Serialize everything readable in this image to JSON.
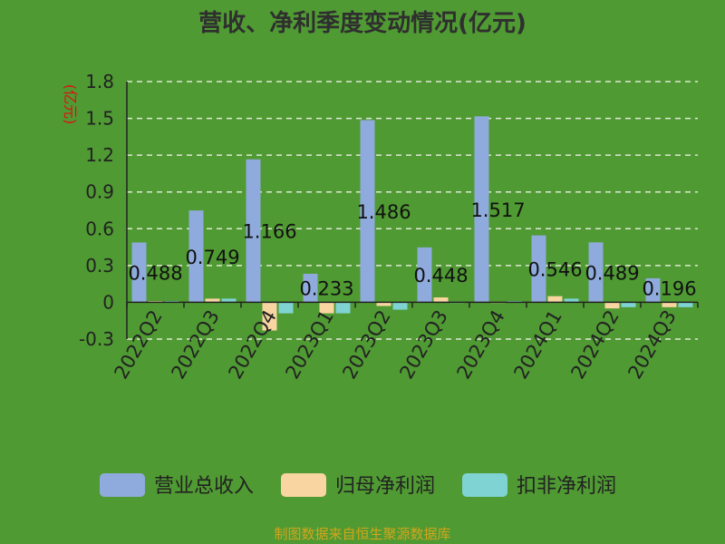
{
  "colors": {
    "background": "#4f9a32",
    "revenue": "#8faadc",
    "net_profit": "#f8d5a1",
    "deducted_net_profit": "#7fd3d3",
    "grid": "#dfe8d5",
    "axis": "#222222",
    "ylabel": "#dd1111",
    "source": "#d4a51c"
  },
  "source_text": "制图数据来自恒生聚源数据库",
  "chart_data": {
    "type": "bar",
    "title": "营收、净利季度变动情况(亿元)",
    "ylabel": "(亿元)",
    "xlabel": "",
    "ylim": [
      -0.3,
      1.8
    ],
    "yticks": [
      "1.8",
      "1.5",
      "1.2",
      "0.9",
      "0.6",
      "0.3",
      "0",
      "-0.3"
    ],
    "ytick_values": [
      1.8,
      1.5,
      1.2,
      0.9,
      0.6,
      0.3,
      0,
      -0.3
    ],
    "grid": true,
    "legend_position": "bottom",
    "categories": [
      "2022Q2",
      "2022Q3",
      "2022Q4",
      "2023Q1",
      "2023Q2",
      "2023Q3",
      "2023Q4",
      "2024Q1",
      "2024Q2",
      "2024Q3"
    ],
    "data_labels": [
      "0.488",
      "0.749",
      "1.166",
      "0.233",
      "1.486",
      "0.448",
      "1.517",
      "0.546",
      "0.489",
      "0.196"
    ],
    "series": [
      {
        "name": "营业总收入",
        "color": "#8faadc",
        "values": [
          0.488,
          0.749,
          1.166,
          0.233,
          1.486,
          0.448,
          1.517,
          0.546,
          0.489,
          0.196
        ]
      },
      {
        "name": "归母净利润",
        "color": "#f8d5a1",
        "values": [
          0.01,
          0.03,
          -0.23,
          -0.09,
          -0.03,
          0.04,
          0.005,
          0.05,
          -0.05,
          -0.04
        ]
      },
      {
        "name": "扣非净利润",
        "color": "#7fd3d3",
        "values": [
          0.01,
          0.03,
          -0.09,
          -0.09,
          -0.06,
          0.005,
          0.01,
          0.03,
          -0.04,
          -0.04
        ]
      }
    ]
  }
}
